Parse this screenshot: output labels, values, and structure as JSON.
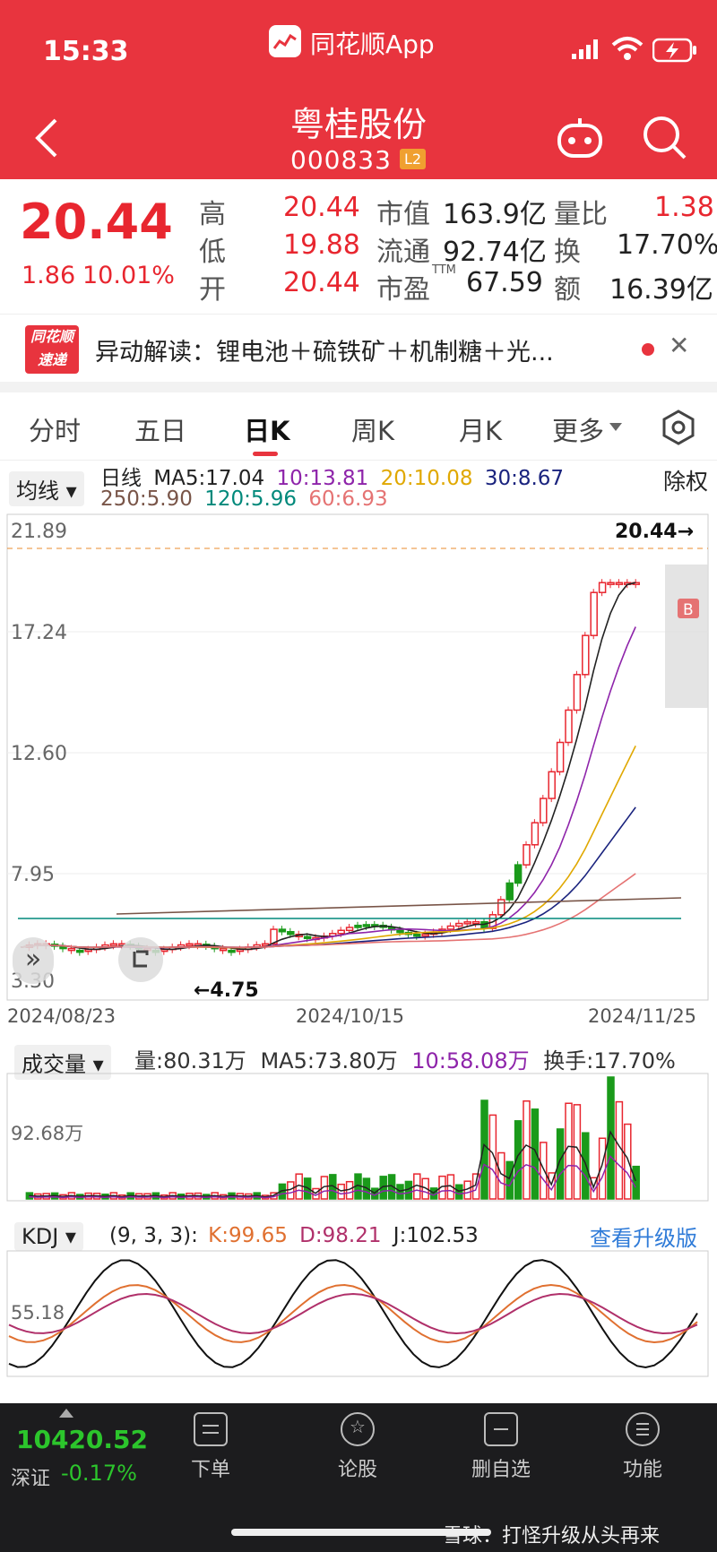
{
  "status": {
    "time": "15:33",
    "app_name": "同花顺App"
  },
  "stock": {
    "name": "粤桂股份",
    "code": "000833",
    "level_badge": "L2"
  },
  "quote": {
    "price": "20.44",
    "change": "1.86",
    "change_pct": "10.01%",
    "high_label": "高",
    "high": "20.44",
    "low_label": "低",
    "low": "19.88",
    "open_label": "开",
    "open": "20.44",
    "mcap_label": "市值",
    "mcap": "163.9亿",
    "float_label": "流通",
    "float": "92.74亿",
    "pe_label": "市盈",
    "pe_sup": "TTM",
    "pe": "67.59",
    "vr_label": "量比",
    "vr": "1.38",
    "turnover_label": "换",
    "turnover": "17.70%",
    "amount_label": "额",
    "amount": "16.39亿"
  },
  "news": {
    "logo_top": "同花顺",
    "logo_bottom": "速递",
    "text": "异动解读：锂电池＋硫铁矿＋机制糖＋光..."
  },
  "tabs": [
    {
      "label": "分时"
    },
    {
      "label": "五日"
    },
    {
      "label": "日K"
    },
    {
      "label": "周K"
    },
    {
      "label": "月K"
    },
    {
      "label": "更多"
    }
  ],
  "ma_panel": {
    "selector": "均线",
    "period": "日线",
    "ma5": "MA5:17.04",
    "ma10": "10:13.81",
    "ma20": "20:10.08",
    "ma30": "30:8.67",
    "ma250": "250:5.90",
    "ma120": "120:5.96",
    "ma60": "60:6.93",
    "adjust": "除权",
    "y_labels": [
      "21.89",
      "17.24",
      "12.60",
      "7.95",
      "3.30"
    ],
    "high_marker": "20.44→",
    "low_marker": "←4.75",
    "buy_marker": "B",
    "dates": [
      "2024/08/23",
      "2024/10/15",
      "2024/11/25"
    ]
  },
  "vol_panel": {
    "selector": "成交量",
    "vol": "量:80.31万",
    "ma5": "MA5:73.80万",
    "ma10": "10:58.08万",
    "turnover": "换手:17.70%",
    "y_label": "92.68万"
  },
  "kdj_panel": {
    "selector": "KDJ",
    "params": "(9, 3, 3):",
    "k": "K:99.65",
    "d": "D:98.21",
    "j": "J:102.53",
    "upgrade": "查看升级版",
    "y_label": "55.18"
  },
  "index": {
    "value": "10420.52",
    "name": "深证",
    "change": "-0.17%"
  },
  "bottom_nav": [
    {
      "label": "下单"
    },
    {
      "label": "论股"
    },
    {
      "label": "删自选"
    },
    {
      "label": "功能"
    }
  ],
  "watermark": "雪球：打怪升级从头再来",
  "colors": {
    "up": "#e8262f",
    "down": "#1a9a1a",
    "ma5": "#222222",
    "ma10": "#8e24aa",
    "ma20": "#e0a800",
    "ma30": "#1a237e",
    "ma60": "#e57373",
    "ma120": "#00897b",
    "ma250": "#795548"
  }
}
